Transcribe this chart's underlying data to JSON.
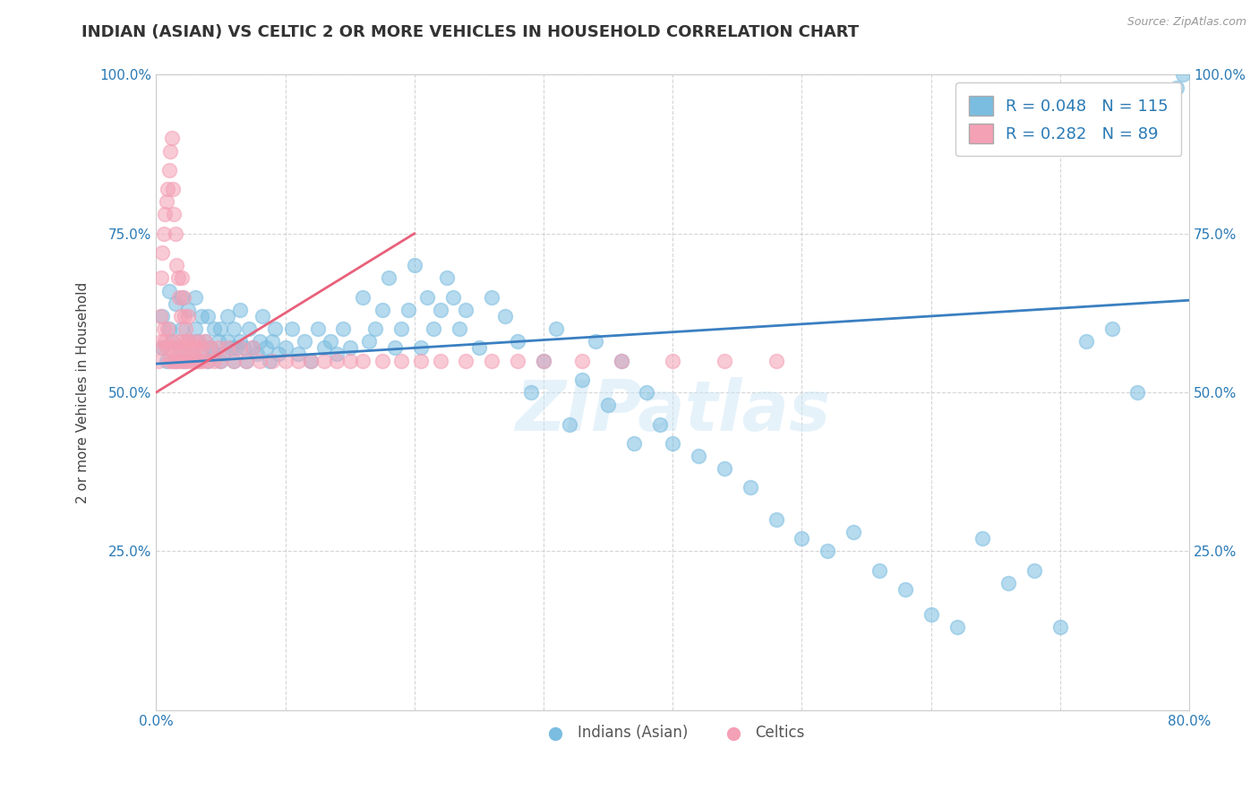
{
  "title": "INDIAN (ASIAN) VS CELTIC 2 OR MORE VEHICLES IN HOUSEHOLD CORRELATION CHART",
  "source": "Source: ZipAtlas.com",
  "ylabel": "2 or more Vehicles in Household",
  "xlim": [
    0,
    0.8
  ],
  "ylim": [
    0,
    1.0
  ],
  "xticks": [
    0.0,
    0.1,
    0.2,
    0.3,
    0.4,
    0.5,
    0.6,
    0.7,
    0.8
  ],
  "xticklabels": [
    "0.0%",
    "",
    "",
    "",
    "",
    "",
    "",
    "",
    "80.0%"
  ],
  "yticks": [
    0.0,
    0.25,
    0.5,
    0.75,
    1.0
  ],
  "yticklabels": [
    "",
    "25.0%",
    "50.0%",
    "75.0%",
    "100.0%"
  ],
  "series1_color": "#7bbde0",
  "series1_label": "Indians (Asian)",
  "series1_R": 0.048,
  "series1_N": 115,
  "series2_color": "#f4a0b5",
  "series2_label": "Celtics",
  "series2_R": 0.282,
  "series2_N": 89,
  "tick_color": "#2a7ab5",
  "background_color": "#ffffff",
  "title_fontsize": 13,
  "axis_label_fontsize": 11,
  "tick_fontsize": 11,
  "blue_scatter_x": [
    0.005,
    0.005,
    0.008,
    0.01,
    0.01,
    0.012,
    0.015,
    0.015,
    0.018,
    0.02,
    0.02,
    0.022,
    0.025,
    0.025,
    0.028,
    0.03,
    0.03,
    0.032,
    0.035,
    0.035,
    0.038,
    0.04,
    0.04,
    0.042,
    0.045,
    0.045,
    0.048,
    0.05,
    0.05,
    0.052,
    0.055,
    0.055,
    0.058,
    0.06,
    0.06,
    0.062,
    0.065,
    0.065,
    0.068,
    0.07,
    0.072,
    0.075,
    0.078,
    0.08,
    0.082,
    0.085,
    0.088,
    0.09,
    0.092,
    0.095,
    0.1,
    0.105,
    0.11,
    0.115,
    0.12,
    0.125,
    0.13,
    0.135,
    0.14,
    0.145,
    0.15,
    0.16,
    0.165,
    0.17,
    0.175,
    0.18,
    0.185,
    0.19,
    0.195,
    0.2,
    0.205,
    0.21,
    0.215,
    0.22,
    0.225,
    0.23,
    0.235,
    0.24,
    0.25,
    0.26,
    0.27,
    0.28,
    0.29,
    0.3,
    0.31,
    0.32,
    0.33,
    0.34,
    0.35,
    0.36,
    0.37,
    0.38,
    0.39,
    0.4,
    0.42,
    0.44,
    0.46,
    0.48,
    0.5,
    0.52,
    0.54,
    0.56,
    0.58,
    0.6,
    0.62,
    0.64,
    0.66,
    0.68,
    0.7,
    0.72,
    0.74,
    0.76,
    0.785,
    0.79,
    0.795
  ],
  "blue_scatter_y": [
    0.57,
    0.62,
    0.55,
    0.6,
    0.66,
    0.58,
    0.55,
    0.64,
    0.57,
    0.6,
    0.65,
    0.55,
    0.58,
    0.63,
    0.56,
    0.6,
    0.65,
    0.58,
    0.56,
    0.62,
    0.58,
    0.55,
    0.62,
    0.57,
    0.56,
    0.6,
    0.58,
    0.55,
    0.6,
    0.56,
    0.58,
    0.62,
    0.57,
    0.55,
    0.6,
    0.57,
    0.58,
    0.63,
    0.57,
    0.55,
    0.6,
    0.57,
    0.56,
    0.58,
    0.62,
    0.57,
    0.55,
    0.58,
    0.6,
    0.56,
    0.57,
    0.6,
    0.56,
    0.58,
    0.55,
    0.6,
    0.57,
    0.58,
    0.56,
    0.6,
    0.57,
    0.65,
    0.58,
    0.6,
    0.63,
    0.68,
    0.57,
    0.6,
    0.63,
    0.7,
    0.57,
    0.65,
    0.6,
    0.63,
    0.68,
    0.65,
    0.6,
    0.63,
    0.57,
    0.65,
    0.62,
    0.58,
    0.5,
    0.55,
    0.6,
    0.45,
    0.52,
    0.58,
    0.48,
    0.55,
    0.42,
    0.5,
    0.45,
    0.42,
    0.4,
    0.38,
    0.35,
    0.3,
    0.27,
    0.25,
    0.28,
    0.22,
    0.19,
    0.15,
    0.13,
    0.27,
    0.2,
    0.22,
    0.13,
    0.58,
    0.6,
    0.5,
    0.95,
    0.98,
    1.0
  ],
  "pink_scatter_x": [
    0.002,
    0.003,
    0.004,
    0.004,
    0.005,
    0.005,
    0.006,
    0.006,
    0.007,
    0.007,
    0.008,
    0.008,
    0.009,
    0.009,
    0.01,
    0.01,
    0.011,
    0.011,
    0.012,
    0.012,
    0.013,
    0.013,
    0.014,
    0.014,
    0.015,
    0.015,
    0.016,
    0.016,
    0.017,
    0.017,
    0.018,
    0.018,
    0.019,
    0.019,
    0.02,
    0.02,
    0.021,
    0.021,
    0.022,
    0.022,
    0.023,
    0.023,
    0.024,
    0.025,
    0.025,
    0.026,
    0.027,
    0.028,
    0.029,
    0.03,
    0.031,
    0.032,
    0.033,
    0.034,
    0.035,
    0.036,
    0.038,
    0.04,
    0.042,
    0.045,
    0.048,
    0.05,
    0.055,
    0.06,
    0.065,
    0.07,
    0.075,
    0.08,
    0.09,
    0.1,
    0.11,
    0.12,
    0.13,
    0.14,
    0.15,
    0.16,
    0.175,
    0.19,
    0.205,
    0.22,
    0.24,
    0.26,
    0.28,
    0.3,
    0.33,
    0.36,
    0.4,
    0.44,
    0.48
  ],
  "pink_scatter_y": [
    0.55,
    0.62,
    0.58,
    0.68,
    0.57,
    0.72,
    0.6,
    0.75,
    0.58,
    0.78,
    0.57,
    0.8,
    0.6,
    0.82,
    0.55,
    0.85,
    0.57,
    0.88,
    0.55,
    0.9,
    0.58,
    0.82,
    0.55,
    0.78,
    0.57,
    0.75,
    0.55,
    0.7,
    0.58,
    0.68,
    0.55,
    0.65,
    0.57,
    0.62,
    0.55,
    0.68,
    0.57,
    0.65,
    0.55,
    0.62,
    0.58,
    0.6,
    0.55,
    0.58,
    0.62,
    0.57,
    0.55,
    0.58,
    0.57,
    0.55,
    0.57,
    0.55,
    0.58,
    0.55,
    0.57,
    0.55,
    0.58,
    0.55,
    0.57,
    0.55,
    0.57,
    0.55,
    0.57,
    0.55,
    0.57,
    0.55,
    0.57,
    0.55,
    0.55,
    0.55,
    0.55,
    0.55,
    0.55,
    0.55,
    0.55,
    0.55,
    0.55,
    0.55,
    0.55,
    0.55,
    0.55,
    0.55,
    0.55,
    0.55,
    0.55,
    0.55,
    0.55,
    0.55,
    0.55
  ]
}
